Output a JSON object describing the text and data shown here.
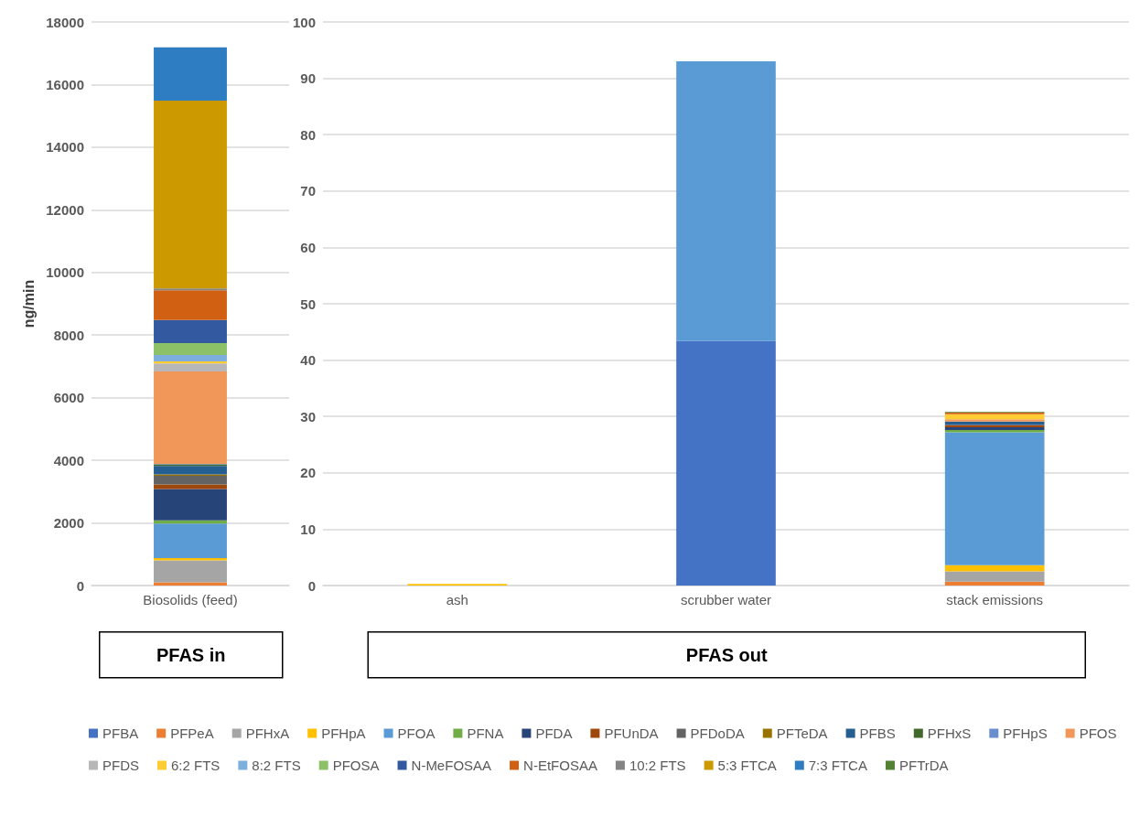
{
  "chart_data": [
    {
      "type": "bar",
      "stacked": true,
      "categories": [
        "Biosolids (feed)"
      ],
      "xlabel": "PFAS in",
      "ylabel": "ng/min",
      "ylim": [
        0,
        18000
      ],
      "yticks": [
        0,
        2000,
        4000,
        6000,
        8000,
        10000,
        12000,
        14000,
        16000,
        18000
      ],
      "grid": "y",
      "legend": false,
      "series": [
        {
          "color": "#4472c4",
          "values": [
            0
          ]
        },
        {
          "color": "#ed7d31",
          "values": [
            100
          ]
        },
        {
          "color": "#a5a5a5",
          "values": [
            700
          ]
        },
        {
          "color": "#ffc000",
          "values": [
            80
          ]
        },
        {
          "color": "#5b9bd5",
          "values": [
            1100
          ]
        },
        {
          "color": "#70ad47",
          "values": [
            100
          ]
        },
        {
          "color": "#264478",
          "values": [
            1000
          ]
        },
        {
          "color": "#9e480e",
          "values": [
            150
          ]
        },
        {
          "color": "#636363",
          "values": [
            280
          ]
        },
        {
          "color": "#997300",
          "values": [
            40
          ]
        },
        {
          "color": "#255e91",
          "values": [
            270
          ]
        },
        {
          "color": "#43682b",
          "values": [
            50
          ]
        },
        {
          "color": "#698ed0",
          "values": [
            20
          ]
        },
        {
          "color": "#f1975a",
          "values": [
            2950
          ]
        },
        {
          "color": "#b7b7b7",
          "values": [
            250
          ]
        },
        {
          "color": "#ffcd33",
          "values": [
            70
          ]
        },
        {
          "color": "#7cafdd",
          "values": [
            200
          ]
        },
        {
          "color": "#8cc168",
          "values": [
            380
          ]
        },
        {
          "color": "#335aa1",
          "values": [
            740
          ]
        },
        {
          "color": "#d26012",
          "values": [
            950
          ]
        },
        {
          "color": "#848484",
          "values": [
            60
          ]
        },
        {
          "color": "#cc9a00",
          "values": [
            6000
          ]
        },
        {
          "color": "#2e7dc2",
          "values": [
            1700
          ]
        },
        {
          "color": "#548235",
          "values": [
            0
          ]
        }
      ]
    },
    {
      "type": "bar",
      "stacked": true,
      "categories": [
        "ash",
        "scrubber water",
        "stack emissions"
      ],
      "xlabel": "PFAS out",
      "ylim": [
        0,
        100
      ],
      "yticks": [
        0,
        10,
        20,
        30,
        40,
        50,
        60,
        70,
        80,
        90,
        100
      ],
      "grid": "y",
      "legend": "bottom",
      "series": [
        {
          "name": "PFBA",
          "color": "#4472c4",
          "values": [
            0,
            43.4,
            0
          ]
        },
        {
          "name": "PFPeA",
          "color": "#ed7d31",
          "values": [
            0,
            0,
            0.7
          ]
        },
        {
          "name": "PFHxA",
          "color": "#a5a5a5",
          "values": [
            0,
            0,
            1.8
          ]
        },
        {
          "name": "PFHpA",
          "color": "#ffc000",
          "values": [
            0.3,
            0,
            1.1
          ]
        },
        {
          "name": "PFOA",
          "color": "#5b9bd5",
          "values": [
            0,
            49.6,
            23.6
          ]
        },
        {
          "name": "PFNA",
          "color": "#70ad47",
          "values": [
            0,
            0,
            0.4
          ]
        },
        {
          "name": "PFDA",
          "color": "#264478",
          "values": [
            0,
            0,
            0.5
          ]
        },
        {
          "name": "PFUnDA",
          "color": "#9e480e",
          "values": [
            0,
            0,
            0.4
          ]
        },
        {
          "name": "PFDoDA",
          "color": "#636363",
          "values": [
            0,
            0,
            0
          ]
        },
        {
          "name": "PFTeDA",
          "color": "#997300",
          "values": [
            0,
            0,
            0
          ]
        },
        {
          "name": "PFBS",
          "color": "#255e91",
          "values": [
            0,
            0,
            0.6
          ]
        },
        {
          "name": "PFHxS",
          "color": "#43682b",
          "values": [
            0,
            0,
            0
          ]
        },
        {
          "name": "PFHpS",
          "color": "#698ed0",
          "values": [
            0,
            0,
            0
          ]
        },
        {
          "name": "PFOS",
          "color": "#f1975a",
          "values": [
            0,
            0,
            0.4
          ]
        },
        {
          "name": "PFDS",
          "color": "#b7b7b7",
          "values": [
            0,
            0,
            0
          ]
        },
        {
          "name": "6:2 FTS",
          "color": "#ffcd33",
          "values": [
            0,
            0,
            0.9
          ]
        },
        {
          "name": "8:2 FTS",
          "color": "#7cafdd",
          "values": [
            0,
            0,
            0
          ]
        },
        {
          "name": "PFOSA",
          "color": "#8cc168",
          "values": [
            0,
            0,
            0
          ]
        },
        {
          "name": "N-MeFOSAA",
          "color": "#335aa1",
          "values": [
            0,
            0,
            0
          ]
        },
        {
          "name": "N-EtFOSAA",
          "color": "#d26012",
          "values": [
            0,
            0,
            0.3
          ]
        },
        {
          "name": "10:2 FTS",
          "color": "#848484",
          "values": [
            0,
            0,
            0
          ]
        },
        {
          "name": "5:3 FTCA",
          "color": "#cc9a00",
          "values": [
            0,
            0,
            0
          ]
        },
        {
          "name": "7:3 FTCA",
          "color": "#2e7dc2",
          "values": [
            0,
            0,
            0
          ]
        },
        {
          "name": "PFTrDA",
          "color": "#548235",
          "values": [
            0,
            0,
            0.1
          ]
        }
      ]
    }
  ]
}
